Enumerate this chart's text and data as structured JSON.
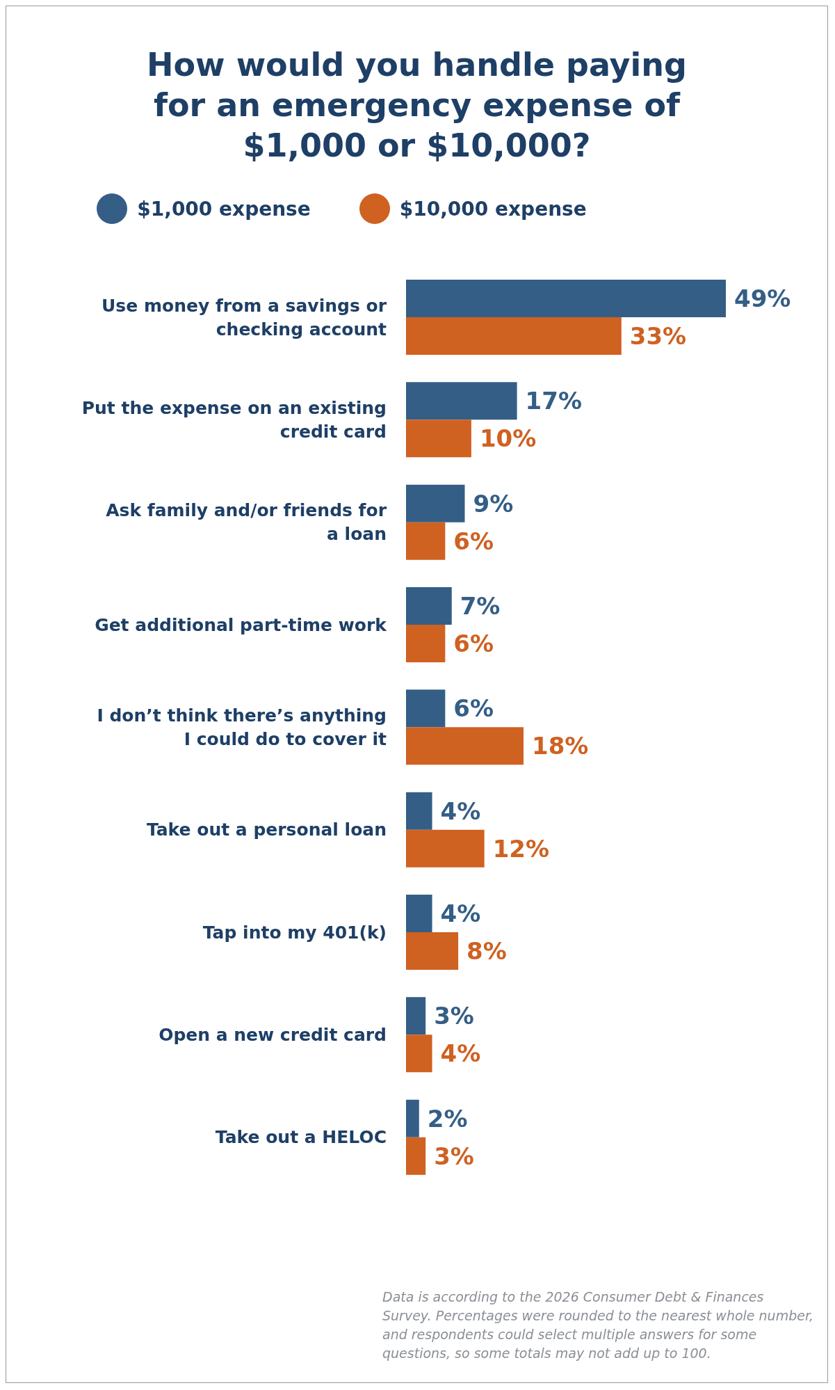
{
  "chart_data": {
    "type": "bar",
    "orientation": "horizontal",
    "title": "How would you handle paying for an emergency expense of $1,000 or $10,000?",
    "legend": "top",
    "categories": [
      "Use money from a savings or checking account",
      "Put the expense on an existing credit card",
      "Ask family and/or friends for a loan",
      "Get additional part-time work",
      "I don’t think there’s anything I could do to cover it",
      "Take out a personal loan",
      "Tap into my 401(k)",
      "Open a new credit card",
      "Take out a HELOC"
    ],
    "series": [
      {
        "name": "$1,000 expense",
        "color": "#345e86",
        "values": [
          49,
          17,
          9,
          7,
          6,
          4,
          4,
          3,
          2
        ],
        "value_labels": [
          "49%",
          "17%",
          "9%",
          "7%",
          "6%",
          "4%",
          "4%",
          "3%",
          "2%"
        ]
      },
      {
        "name": "$10,000 expense",
        "color": "#cf6121",
        "values": [
          33,
          10,
          6,
          6,
          18,
          12,
          8,
          4,
          3
        ],
        "value_labels": [
          "33%",
          "10%",
          "6%",
          "6%",
          "18%",
          "12%",
          "8%",
          "4%",
          "3%"
        ]
      }
    ],
    "annotations": [
      "Data is according to the 2026 Consumer Debt & Finances Survey. Percentages were rounded to the nearest whole number, and respondents could select multiple answers for some questions, so some totals may not add up to 100."
    ]
  }
}
